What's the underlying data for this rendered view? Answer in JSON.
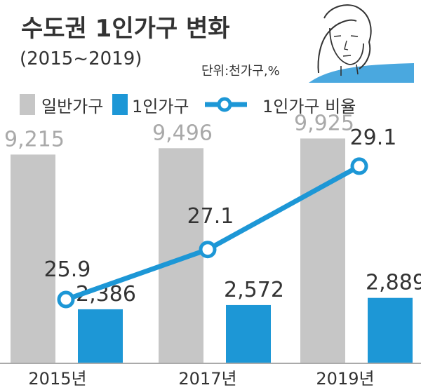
{
  "chart_data": {
    "type": "bar",
    "title": "수도권 1인가구 변화",
    "subtitle": "(2015~2019)",
    "unit": "단위:천가구,%",
    "categories": [
      "2015년",
      "2017년",
      "2019년"
    ],
    "series": [
      {
        "name": "일반가구",
        "type": "bar",
        "values": [
          9215,
          9496,
          9925
        ],
        "labels": [
          "9,215",
          "9,496",
          "9,925"
        ],
        "color": "#c6c6c6"
      },
      {
        "name": "1인가구",
        "type": "bar",
        "values": [
          2386,
          2572,
          2889
        ],
        "labels": [
          "2,386",
          "2,572",
          "2,889"
        ],
        "color": "#1d97d6"
      },
      {
        "name": "1인가구 비율",
        "type": "line",
        "values": [
          25.9,
          27.1,
          29.1
        ],
        "labels": [
          "25.9",
          "27.1",
          "29.1"
        ],
        "color": "#1d97d6"
      }
    ],
    "legend_position": "top-left",
    "grid": false
  },
  "illustration": {
    "icon": "woman-face-icon"
  }
}
